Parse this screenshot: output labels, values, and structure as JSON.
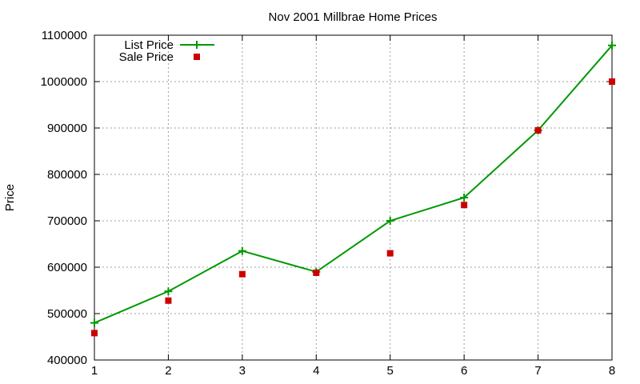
{
  "chart_data": {
    "type": "line",
    "title": "Nov 2001 Millbrae Home Prices",
    "xlabel": "",
    "ylabel": "Price",
    "xlim": [
      1,
      8
    ],
    "ylim": [
      400000,
      1100000
    ],
    "x_ticks": [
      "1",
      "2",
      "3",
      "4",
      "5",
      "6",
      "7",
      "8"
    ],
    "y_ticks": [
      "400000",
      "500000",
      "600000",
      "700000",
      "800000",
      "900000",
      "1000000",
      "1100000"
    ],
    "grid": true,
    "legend_position": "top-left",
    "x": [
      1,
      2,
      3,
      4,
      5,
      6,
      7,
      8
    ],
    "series": [
      {
        "name": "List Price",
        "style": "line-with-plus-markers",
        "color": "#009900",
        "values": [
          480000,
          548000,
          635000,
          590000,
          700000,
          750000,
          895000,
          1078000
        ]
      },
      {
        "name": "Sale Price",
        "style": "square-points",
        "color": "#cc0000",
        "values": [
          458000,
          528000,
          585000,
          588000,
          630000,
          734000,
          895000,
          1000000
        ]
      }
    ]
  }
}
